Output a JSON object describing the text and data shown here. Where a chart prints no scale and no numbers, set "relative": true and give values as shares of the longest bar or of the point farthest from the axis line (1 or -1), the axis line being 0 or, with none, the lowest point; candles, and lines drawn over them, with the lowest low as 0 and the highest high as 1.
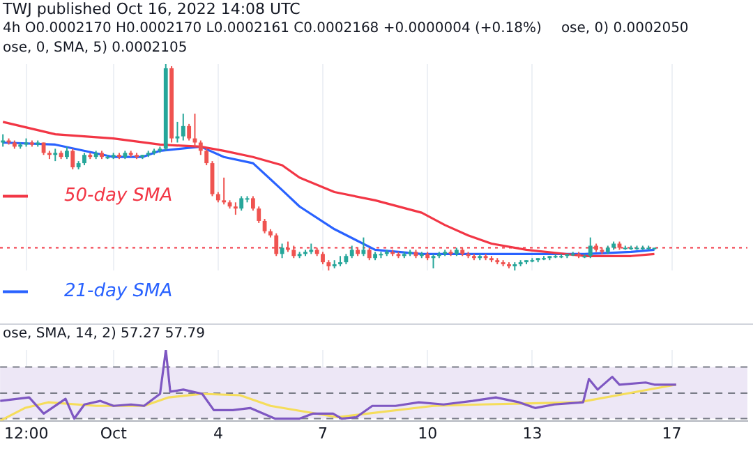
{
  "chart_data": [
    {
      "type": "candlestick",
      "title": "TWJ published Oct 16, 2022 14:08 UTC",
      "relative": true,
      "tick_labels": false,
      "grid": "x",
      "legend": "left",
      "marker": "none",
      "annotations": [
        "4h  O0.0002170  H0.0002170  L0.0002161  C0.0002168  +0.0000004 (+0.18%)",
        "ose, 0) 0.0002050",
        "ose, 0, SMA, 5) 0.0002105"
      ],
      "xlim": [
        "2022-09-27T18:00",
        "2022-10-19T04:00"
      ],
      "xticks": [
        {
          "value": "2022-09-28T12:00",
          "label": null
        },
        {
          "value": "2022-10-01T00:00",
          "label": null
        },
        {
          "value": "2022-10-04T00:00",
          "label": null
        },
        {
          "value": "2022-10-07T00:00",
          "label": null
        },
        {
          "value": "2022-10-10T00:00",
          "label": null
        },
        {
          "value": "2022-10-13T00:00",
          "label": null
        },
        {
          "value": "2022-10-17T00:00",
          "label": null
        }
      ],
      "ref_lines": [
        {
          "axis": "y",
          "value": 0.11,
          "color": "#f23645",
          "line_style": "dotted"
        }
      ],
      "x": [
        "2022-09-27T20:00",
        "2022-09-28T00:00",
        "2022-09-28T04:00",
        "2022-09-28T08:00",
        "2022-09-28T12:00",
        "2022-09-28T16:00",
        "2022-09-28T20:00",
        "2022-09-29T00:00",
        "2022-09-29T04:00",
        "2022-09-29T08:00",
        "2022-09-29T12:00",
        "2022-09-29T16:00",
        "2022-09-29T20:00",
        "2022-09-30T00:00",
        "2022-09-30T04:00",
        "2022-09-30T08:00",
        "2022-09-30T12:00",
        "2022-09-30T16:00",
        "2022-09-30T20:00",
        "2022-10-01T00:00",
        "2022-10-01T04:00",
        "2022-10-01T08:00",
        "2022-10-01T12:00",
        "2022-10-01T16:00",
        "2022-10-01T20:00",
        "2022-10-02T00:00",
        "2022-10-02T04:00",
        "2022-10-02T08:00",
        "2022-10-02T12:00",
        "2022-10-02T16:00",
        "2022-10-02T20:00",
        "2022-10-03T00:00",
        "2022-10-03T04:00",
        "2022-10-03T08:00",
        "2022-10-03T12:00",
        "2022-10-03T16:00",
        "2022-10-03T20:00",
        "2022-10-04T00:00",
        "2022-10-04T04:00",
        "2022-10-04T08:00",
        "2022-10-04T12:00",
        "2022-10-04T16:00",
        "2022-10-04T20:00",
        "2022-10-05T00:00",
        "2022-10-05T04:00",
        "2022-10-05T08:00",
        "2022-10-05T12:00",
        "2022-10-05T16:00",
        "2022-10-05T20:00",
        "2022-10-06T00:00",
        "2022-10-06T04:00",
        "2022-10-06T08:00",
        "2022-10-06T12:00",
        "2022-10-06T16:00",
        "2022-10-06T20:00",
        "2022-10-07T00:00",
        "2022-10-07T04:00",
        "2022-10-07T08:00",
        "2022-10-07T12:00",
        "2022-10-07T16:00",
        "2022-10-07T20:00",
        "2022-10-08T00:00",
        "2022-10-08T04:00",
        "2022-10-08T08:00",
        "2022-10-08T12:00",
        "2022-10-08T16:00",
        "2022-10-08T20:00",
        "2022-10-09T00:00",
        "2022-10-09T04:00",
        "2022-10-09T08:00",
        "2022-10-09T12:00",
        "2022-10-09T16:00",
        "2022-10-09T20:00",
        "2022-10-10T00:00",
        "2022-10-10T04:00",
        "2022-10-10T08:00",
        "2022-10-10T12:00",
        "2022-10-10T16:00",
        "2022-10-10T20:00",
        "2022-10-11T00:00",
        "2022-10-11T04:00",
        "2022-10-11T08:00",
        "2022-10-11T12:00",
        "2022-10-11T16:00",
        "2022-10-11T20:00",
        "2022-10-12T00:00",
        "2022-10-12T04:00",
        "2022-10-12T08:00",
        "2022-10-12T12:00",
        "2022-10-12T16:00",
        "2022-10-12T20:00",
        "2022-10-13T00:00",
        "2022-10-13T04:00",
        "2022-10-13T08:00",
        "2022-10-13T12:00",
        "2022-10-13T16:00",
        "2022-10-13T20:00",
        "2022-10-14T00:00",
        "2022-10-14T04:00",
        "2022-10-14T08:00",
        "2022-10-14T12:00",
        "2022-10-14T16:00",
        "2022-10-14T20:00",
        "2022-10-15T00:00",
        "2022-10-15T04:00",
        "2022-10-15T08:00",
        "2022-10-15T12:00",
        "2022-10-15T16:00",
        "2022-10-15T20:00",
        "2022-10-16T00:00",
        "2022-10-16T04:00",
        "2022-10-16T08:00",
        "2022-10-16T12:00"
      ],
      "ohlc": [
        [
          0.62,
          0.66,
          0.6,
          0.63
        ],
        [
          0.63,
          0.64,
          0.61,
          0.62
        ],
        [
          0.62,
          0.63,
          0.59,
          0.6
        ],
        [
          0.6,
          0.62,
          0.59,
          0.61
        ],
        [
          0.61,
          0.64,
          0.6,
          0.62
        ],
        [
          0.62,
          0.63,
          0.6,
          0.61
        ],
        [
          0.61,
          0.63,
          0.6,
          0.62
        ],
        [
          0.62,
          0.62,
          0.56,
          0.57
        ],
        [
          0.57,
          0.58,
          0.54,
          0.56
        ],
        [
          0.56,
          0.59,
          0.53,
          0.57
        ],
        [
          0.57,
          0.58,
          0.54,
          0.55
        ],
        [
          0.55,
          0.6,
          0.54,
          0.58
        ],
        [
          0.58,
          0.59,
          0.49,
          0.5
        ],
        [
          0.5,
          0.53,
          0.49,
          0.52
        ],
        [
          0.52,
          0.57,
          0.51,
          0.56
        ],
        [
          0.56,
          0.57,
          0.54,
          0.55
        ],
        [
          0.55,
          0.58,
          0.54,
          0.57
        ],
        [
          0.57,
          0.58,
          0.54,
          0.55
        ],
        [
          0.55,
          0.56,
          0.54,
          0.55
        ],
        [
          0.55,
          0.57,
          0.54,
          0.56
        ],
        [
          0.56,
          0.57,
          0.54,
          0.55
        ],
        [
          0.55,
          0.58,
          0.54,
          0.57
        ],
        [
          0.57,
          0.58,
          0.55,
          0.56
        ],
        [
          0.56,
          0.57,
          0.54,
          0.55
        ],
        [
          0.55,
          0.56,
          0.54,
          0.56
        ],
        [
          0.56,
          0.58,
          0.55,
          0.57
        ],
        [
          0.57,
          0.59,
          0.56,
          0.58
        ],
        [
          0.58,
          0.6,
          0.57,
          0.59
        ],
        [
          0.59,
          1.0,
          0.58,
          0.98
        ],
        [
          0.98,
          0.99,
          0.62,
          0.64
        ],
        [
          0.64,
          0.72,
          0.62,
          0.65
        ],
        [
          0.65,
          0.76,
          0.63,
          0.7
        ],
        [
          0.7,
          0.71,
          0.63,
          0.64
        ],
        [
          0.64,
          0.76,
          0.6,
          0.62
        ],
        [
          0.62,
          0.63,
          0.56,
          0.58
        ],
        [
          0.58,
          0.59,
          0.51,
          0.52
        ],
        [
          0.52,
          0.53,
          0.36,
          0.37
        ],
        [
          0.37,
          0.38,
          0.33,
          0.34
        ],
        [
          0.34,
          0.45,
          0.32,
          0.33
        ],
        [
          0.33,
          0.34,
          0.3,
          0.31
        ],
        [
          0.31,
          0.33,
          0.27,
          0.3
        ],
        [
          0.3,
          0.36,
          0.29,
          0.35
        ],
        [
          0.35,
          0.36,
          0.33,
          0.35
        ],
        [
          0.35,
          0.36,
          0.29,
          0.3
        ],
        [
          0.3,
          0.31,
          0.23,
          0.24
        ],
        [
          0.24,
          0.25,
          0.18,
          0.19
        ],
        [
          0.19,
          0.2,
          0.16,
          0.17
        ],
        [
          0.17,
          0.18,
          0.07,
          0.08
        ],
        [
          0.08,
          0.13,
          0.06,
          0.11
        ],
        [
          0.11,
          0.14,
          0.09,
          0.1
        ],
        [
          0.1,
          0.12,
          0.06,
          0.07
        ],
        [
          0.07,
          0.09,
          0.06,
          0.08
        ],
        [
          0.08,
          0.1,
          0.07,
          0.09
        ],
        [
          0.09,
          0.13,
          0.08,
          0.1
        ],
        [
          0.1,
          0.11,
          0.07,
          0.08
        ],
        [
          0.08,
          0.09,
          0.03,
          0.04
        ],
        [
          0.04,
          0.05,
          0.0,
          0.02
        ],
        [
          0.02,
          0.05,
          0.01,
          0.03
        ],
        [
          0.03,
          0.07,
          0.02,
          0.04
        ],
        [
          0.04,
          0.08,
          0.03,
          0.07
        ],
        [
          0.07,
          0.12,
          0.06,
          0.1
        ],
        [
          0.1,
          0.11,
          0.07,
          0.08
        ],
        [
          0.08,
          0.16,
          0.07,
          0.1
        ],
        [
          0.1,
          0.11,
          0.05,
          0.06
        ],
        [
          0.06,
          0.09,
          0.05,
          0.08
        ],
        [
          0.08,
          0.09,
          0.06,
          0.08
        ],
        [
          0.08,
          0.1,
          0.07,
          0.09
        ],
        [
          0.09,
          0.1,
          0.07,
          0.08
        ],
        [
          0.08,
          0.09,
          0.06,
          0.07
        ],
        [
          0.07,
          0.09,
          0.06,
          0.08
        ],
        [
          0.08,
          0.1,
          0.07,
          0.09
        ],
        [
          0.09,
          0.1,
          0.06,
          0.07
        ],
        [
          0.07,
          0.09,
          0.06,
          0.08
        ],
        [
          0.08,
          0.09,
          0.05,
          0.06
        ],
        [
          0.06,
          0.08,
          0.01,
          0.07
        ],
        [
          0.07,
          0.09,
          0.06,
          0.08
        ],
        [
          0.08,
          0.1,
          0.07,
          0.09
        ],
        [
          0.09,
          0.1,
          0.07,
          0.08
        ],
        [
          0.08,
          0.11,
          0.07,
          0.1
        ],
        [
          0.1,
          0.11,
          0.07,
          0.08
        ],
        [
          0.08,
          0.09,
          0.06,
          0.07
        ],
        [
          0.07,
          0.08,
          0.05,
          0.06
        ],
        [
          0.06,
          0.08,
          0.05,
          0.07
        ],
        [
          0.07,
          0.08,
          0.05,
          0.06
        ],
        [
          0.06,
          0.07,
          0.04,
          0.05
        ],
        [
          0.05,
          0.06,
          0.03,
          0.04
        ],
        [
          0.04,
          0.05,
          0.02,
          0.03
        ],
        [
          0.03,
          0.04,
          0.01,
          0.02
        ],
        [
          0.02,
          0.04,
          0.0,
          0.03
        ],
        [
          0.03,
          0.05,
          0.02,
          0.04
        ],
        [
          0.04,
          0.05,
          0.03,
          0.05
        ],
        [
          0.05,
          0.06,
          0.04,
          0.05
        ],
        [
          0.05,
          0.06,
          0.04,
          0.06
        ],
        [
          0.06,
          0.07,
          0.05,
          0.06
        ],
        [
          0.06,
          0.07,
          0.05,
          0.07
        ],
        [
          0.07,
          0.08,
          0.06,
          0.07
        ],
        [
          0.07,
          0.08,
          0.06,
          0.07
        ],
        [
          0.07,
          0.08,
          0.06,
          0.08
        ],
        [
          0.08,
          0.09,
          0.07,
          0.08
        ],
        [
          0.08,
          0.09,
          0.06,
          0.07
        ],
        [
          0.07,
          0.08,
          0.06,
          0.07
        ],
        [
          0.07,
          0.16,
          0.06,
          0.12
        ],
        [
          0.12,
          0.13,
          0.09,
          0.1
        ],
        [
          0.1,
          0.11,
          0.08,
          0.09
        ],
        [
          0.09,
          0.12,
          0.08,
          0.11
        ],
        [
          0.11,
          0.14,
          0.1,
          0.13
        ],
        [
          0.13,
          0.14,
          0.1,
          0.11
        ],
        [
          0.11,
          0.12,
          0.1,
          0.11
        ],
        [
          0.11,
          0.12,
          0.1,
          0.11
        ],
        [
          0.11,
          0.12,
          0.1,
          0.11
        ],
        [
          0.11,
          0.12,
          0.1,
          0.11
        ],
        [
          0.11,
          0.12,
          0.1,
          0.11
        ],
        [
          0.11,
          0.11,
          0.1,
          0.11
        ]
      ],
      "series": [
        {
          "name": "50-day SMA",
          "type": "line",
          "color": "#f23645",
          "x": [
            "2022-09-27T20:00",
            "2022-09-29T08:00",
            "2022-10-01T00:00",
            "2022-10-02T08:00",
            "2022-10-03T12:00",
            "2022-10-04T04:00",
            "2022-10-05T00:00",
            "2022-10-05T20:00",
            "2022-10-06T08:00",
            "2022-10-07T08:00",
            "2022-10-08T12:00",
            "2022-10-09T20:00",
            "2022-10-10T12:00",
            "2022-10-11T04:00",
            "2022-10-11T20:00",
            "2022-10-12T20:00",
            "2022-10-14T12:00",
            "2022-10-15T20:00",
            "2022-10-16T12:00"
          ],
          "values": [
            0.72,
            0.66,
            0.64,
            0.61,
            0.6,
            0.58,
            0.55,
            0.51,
            0.45,
            0.38,
            0.34,
            0.28,
            0.22,
            0.17,
            0.13,
            0.1,
            0.07,
            0.07,
            0.08
          ]
        },
        {
          "name": "21-day SMA",
          "type": "line",
          "color": "#2962ff",
          "x": [
            "2022-09-27T20:00",
            "2022-09-29T08:00",
            "2022-10-01T00:00",
            "2022-10-01T20:00",
            "2022-10-02T08:00",
            "2022-10-03T12:00",
            "2022-10-04T04:00",
            "2022-10-05T00:00",
            "2022-10-05T20:00",
            "2022-10-06T08:00",
            "2022-10-07T08:00",
            "2022-10-08T12:00",
            "2022-10-09T20:00",
            "2022-10-11T20:00",
            "2022-10-14T12:00",
            "2022-10-15T20:00",
            "2022-10-16T12:00"
          ],
          "values": [
            0.62,
            0.61,
            0.55,
            0.55,
            0.58,
            0.6,
            0.55,
            0.52,
            0.39,
            0.31,
            0.2,
            0.1,
            0.08,
            0.08,
            0.08,
            0.09,
            0.1
          ]
        }
      ]
    },
    {
      "type": "line",
      "relative": true,
      "grid": "x",
      "marker": "none",
      "annotations": [
        "ose, SMA, 14, 2) 57.27 57.79"
      ],
      "xlim": [
        "2022-09-27T18:00",
        "2022-10-19T04:00"
      ],
      "xticks": [
        {
          "value": "2022-09-28T12:00",
          "label": "12:00"
        },
        {
          "value": "2022-10-01T00:00",
          "label": "Oct"
        },
        {
          "value": "2022-10-04T00:00",
          "label": "4"
        },
        {
          "value": "2022-10-07T00:00",
          "label": "7"
        },
        {
          "value": "2022-10-10T00:00",
          "label": "10"
        },
        {
          "value": "2022-10-13T00:00",
          "label": "13"
        },
        {
          "value": "2022-10-17T00:00",
          "label": "17"
        }
      ],
      "bands": [
        {
          "axis": "y",
          "from": 0.03,
          "to": 0.76,
          "color": "#ede7f6"
        }
      ],
      "ref_lines": [
        {
          "axis": "y",
          "value": 0.76,
          "color": "#787b86",
          "line_style": "dashed"
        },
        {
          "axis": "y",
          "value": 0.39,
          "color": "#787b86",
          "line_style": "dashed"
        },
        {
          "axis": "y",
          "value": 0.03,
          "color": "#787b86",
          "line_style": "dashed"
        }
      ],
      "series": [
        {
          "color": "#7e57c2",
          "x": [
            "2022-09-27T18:00",
            "2022-09-28T14:00",
            "2022-09-29T00:00",
            "2022-09-29T15:00",
            "2022-09-29T21:00",
            "2022-09-30T04:00",
            "2022-09-30T15:00",
            "2022-10-01T00:00",
            "2022-10-01T12:00",
            "2022-10-01T21:00",
            "2022-10-02T08:00",
            "2022-10-02T12:00",
            "2022-10-02T15:00",
            "2022-10-03T00:00",
            "2022-10-03T13:00",
            "2022-10-03T21:00",
            "2022-10-04T10:00",
            "2022-10-04T22:00",
            "2022-10-05T15:00",
            "2022-10-06T08:00",
            "2022-10-06T17:00",
            "2022-10-07T07:00",
            "2022-10-07T13:00",
            "2022-10-07T23:00",
            "2022-10-08T10:00",
            "2022-10-09T02:00",
            "2022-10-09T18:00",
            "2022-10-10T11:00",
            "2022-10-11T07:00",
            "2022-10-11T23:00",
            "2022-10-12T15:00",
            "2022-10-13T02:00",
            "2022-10-13T15:00",
            "2022-10-14T11:00",
            "2022-10-14T15:00",
            "2022-10-14T21:00",
            "2022-10-15T07:00",
            "2022-10-15T12:00",
            "2022-10-16T06:00",
            "2022-10-16T12:00",
            "2022-10-17T03:00"
          ],
          "values": [
            0.28,
            0.33,
            0.1,
            0.31,
            0.03,
            0.23,
            0.28,
            0.21,
            0.23,
            0.21,
            0.38,
            1.0,
            0.41,
            0.44,
            0.38,
            0.15,
            0.15,
            0.18,
            0.03,
            0.03,
            0.1,
            0.1,
            0.03,
            0.05,
            0.21,
            0.21,
            0.26,
            0.23,
            0.28,
            0.33,
            0.26,
            0.18,
            0.23,
            0.26,
            0.59,
            0.44,
            0.62,
            0.51,
            0.54,
            0.51,
            0.51
          ]
        },
        {
          "color": "#f5dd5b",
          "x": [
            "2022-09-27T18:00",
            "2022-09-28T11:00",
            "2022-09-29T03:00",
            "2022-09-30T12:00",
            "2022-10-01T21:00",
            "2022-10-02T14:00",
            "2022-10-03T13:00",
            "2022-10-04T15:00",
            "2022-10-05T12:00",
            "2022-10-07T10:00",
            "2022-10-10T04:00",
            "2022-10-11T13:00",
            "2022-10-14T08:00",
            "2022-10-15T16:00",
            "2022-10-17T03:00"
          ],
          "values": [
            0,
            0.18,
            0.26,
            0.21,
            0.21,
            0.33,
            0.38,
            0.36,
            0.21,
            0.05,
            0.21,
            0.23,
            0.26,
            0.38,
            0.51
          ]
        }
      ]
    }
  ]
}
